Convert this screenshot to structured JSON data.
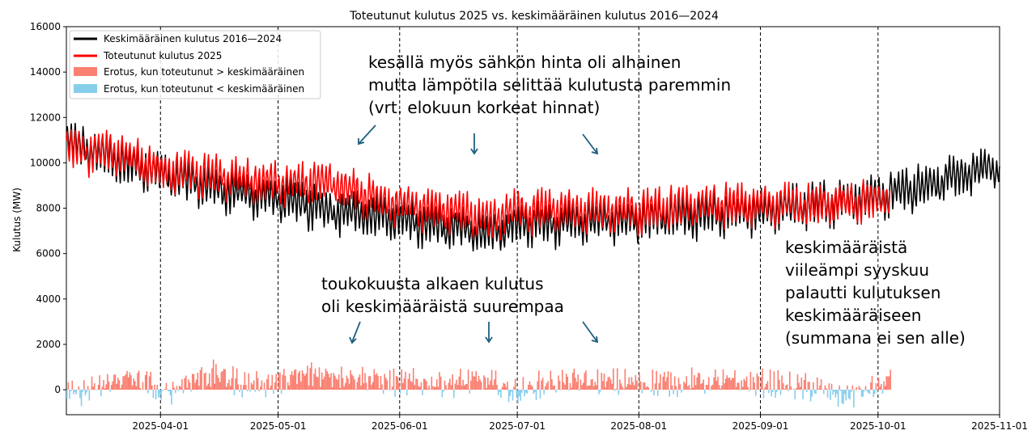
{
  "chart_data": {
    "type": "line",
    "title": "Toteutunut kulutus 2025 vs. keskimääräinen kulutus 2016—2024",
    "xlabel": "",
    "ylabel": "Kulutus (MW)",
    "xlim": [
      "2025-03-08",
      "2025-11-01"
    ],
    "ylim": [
      -1100,
      16000
    ],
    "yticks": [
      0,
      2000,
      4000,
      6000,
      8000,
      10000,
      12000,
      14000,
      16000
    ],
    "ytick_labels": [
      "0",
      "2000",
      "4000",
      "6000",
      "8000",
      "10000",
      "12000",
      "14000",
      "16000"
    ],
    "xticks": [
      "2025-04-01",
      "2025-05-01",
      "2025-06-01",
      "2025-07-01",
      "2025-08-01",
      "2025-09-01",
      "2025-10-01",
      "2025-11-01"
    ],
    "xtick_labels": [
      "2025-04-01",
      "2025-05-01",
      "2025-06-01",
      "2025-07-01",
      "2025-08-01",
      "2025-09-01",
      "2025-10-01",
      "2025-11-01"
    ],
    "vlines": [
      "2025-04-01",
      "2025-05-01",
      "2025-06-01",
      "2025-07-01",
      "2025-08-01",
      "2025-09-01",
      "2025-10-01",
      "2025-11-01"
    ],
    "legend_position": "top-left",
    "series": [
      {
        "name": "Keskimääräinen kulutus 2016—2024",
        "color": "#000000",
        "daily_mean_anchors": {
          "dates": [
            "2025-03-08",
            "2025-03-15",
            "2025-03-22",
            "2025-04-01",
            "2025-04-15",
            "2025-05-01",
            "2025-05-15",
            "2025-06-01",
            "2025-06-15",
            "2025-06-24",
            "2025-07-01",
            "2025-07-15",
            "2025-08-01",
            "2025-08-15",
            "2025-09-01",
            "2025-09-15",
            "2025-10-01",
            "2025-10-15",
            "2025-11-01"
          ],
          "values": [
            11000,
            10600,
            10200,
            9600,
            9000,
            8500,
            8000,
            7600,
            7300,
            6900,
            7400,
            7500,
            7600,
            7800,
            8000,
            8300,
            8600,
            9200,
            10000
          ]
        },
        "daily_amplitude": 1400
      },
      {
        "name": "Toteutunut kulutus 2025",
        "color": "#ff0000",
        "daily_mean_anchors": {
          "dates": [
            "2025-03-08",
            "2025-03-15",
            "2025-03-22",
            "2025-04-01",
            "2025-04-15",
            "2025-05-01",
            "2025-05-15",
            "2025-06-01",
            "2025-06-15",
            "2025-06-24",
            "2025-07-01",
            "2025-07-15",
            "2025-08-01",
            "2025-08-15",
            "2025-09-01",
            "2025-09-15",
            "2025-10-01",
            "2025-10-04"
          ],
          "values": [
            10700,
            10600,
            10500,
            9800,
            9500,
            9200,
            9200,
            8200,
            8000,
            7500,
            8000,
            8000,
            8000,
            8200,
            8300,
            8200,
            8500,
            8700
          ]
        },
        "daily_amplitude": 1400
      },
      {
        "name": "Erotus, kun toteutunut > keskimääräinen",
        "color": "#fa8072",
        "kind": "area-positive"
      },
      {
        "name": "Erotus, kun toteutunut < keskimääräinen",
        "color": "#87ceeb",
        "kind": "area-negative"
      }
    ],
    "difference_profile": {
      "dates": [
        "2025-03-08",
        "2025-03-15",
        "2025-03-22",
        "2025-03-29",
        "2025-04-01",
        "2025-04-08",
        "2025-04-15",
        "2025-04-22",
        "2025-05-01",
        "2025-05-08",
        "2025-05-15",
        "2025-05-22",
        "2025-06-01",
        "2025-06-08",
        "2025-06-15",
        "2025-06-22",
        "2025-07-01",
        "2025-07-08",
        "2025-07-15",
        "2025-08-01",
        "2025-08-15",
        "2025-09-01",
        "2025-09-15",
        "2025-09-22",
        "2025-10-01",
        "2025-10-04"
      ],
      "values": [
        -300,
        0,
        550,
        250,
        -300,
        450,
        700,
        250,
        350,
        650,
        700,
        550,
        250,
        350,
        300,
        400,
        -150,
        300,
        350,
        300,
        350,
        300,
        50,
        -300,
        100,
        450
      ]
    },
    "annotations": [
      {
        "lines": [
          "kesällä myös sähkön hinta oli alhainen",
          "mutta lämpötila selittää kulutusta paremmin",
          "(vrt. elokuun korkeat hinnat)"
        ]
      },
      {
        "lines": [
          "toukokuusta alkaen kulutus",
          "oli keskimääräistä suurempaa"
        ]
      },
      {
        "lines": [
          "keskimääräistä",
          "viileämpi syyskuu",
          "palautti kulutuksen",
          "keskimääräiseen",
          "(summana ei sen alle)"
        ]
      }
    ]
  }
}
